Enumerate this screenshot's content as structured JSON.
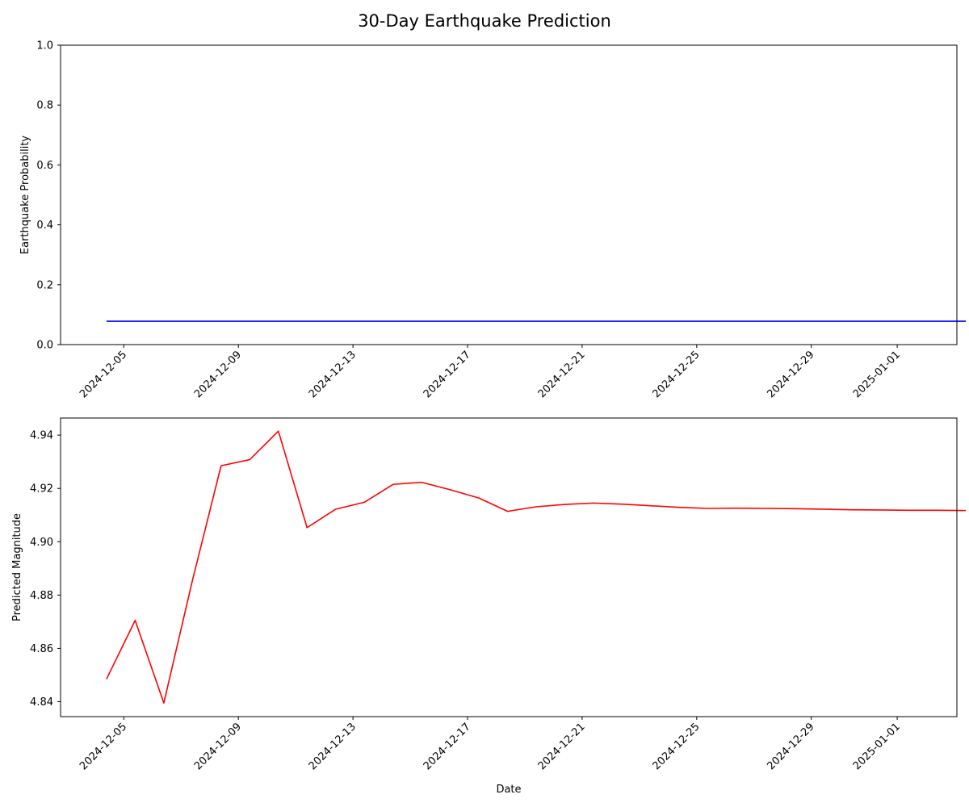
{
  "figure": {
    "title": "30-Day Earthquake Prediction"
  },
  "chart_data": [
    {
      "type": "line",
      "ylabel": "Earthquake Probability",
      "xlabel": "",
      "xlim": [
        "2024-12-02T19:00",
        "2025-01-03T02:00"
      ],
      "ylim": [
        0,
        1
      ],
      "y_ticks": [
        0.0,
        0.2,
        0.4,
        0.6,
        0.8,
        1.0
      ],
      "y_tick_labels": [
        "0.0",
        "0.2",
        "0.4",
        "0.6",
        "0.8",
        "1.0"
      ],
      "x_ticks": [
        "2024-12-05",
        "2024-12-09",
        "2024-12-13",
        "2024-12-17",
        "2024-12-21",
        "2024-12-25",
        "2024-12-29",
        "2025-01-01"
      ],
      "grid": false,
      "series": [
        {
          "color": "#0000ff",
          "x": [
            "2024-12-04",
            "2024-12-05",
            "2024-12-06",
            "2024-12-07",
            "2024-12-08",
            "2024-12-09",
            "2024-12-10",
            "2024-12-11",
            "2024-12-12",
            "2024-12-13",
            "2024-12-14",
            "2024-12-15",
            "2024-12-16",
            "2024-12-17",
            "2024-12-18",
            "2024-12-19",
            "2024-12-20",
            "2024-12-21",
            "2024-12-22",
            "2024-12-23",
            "2024-12-24",
            "2024-12-25",
            "2024-12-26",
            "2024-12-27",
            "2024-12-28",
            "2024-12-29",
            "2024-12-30",
            "2024-12-31",
            "2025-01-01",
            "2025-01-02",
            "2025-01-03"
          ],
          "x_time": "09:30",
          "y": [
            0.078,
            0.078,
            0.078,
            0.078,
            0.078,
            0.078,
            0.078,
            0.078,
            0.078,
            0.078,
            0.078,
            0.078,
            0.078,
            0.078,
            0.078,
            0.078,
            0.078,
            0.078,
            0.078,
            0.078,
            0.078,
            0.078,
            0.078,
            0.078,
            0.078,
            0.078,
            0.078,
            0.078,
            0.078,
            0.078,
            0.078
          ]
        }
      ]
    },
    {
      "type": "line",
      "ylabel": "Predicted Magnitude",
      "xlabel": "Date",
      "xlim": [
        "2024-12-02T19:00",
        "2025-01-03T02:00"
      ],
      "ylim": [
        4.8344,
        4.9464
      ],
      "y_ticks": [
        4.84,
        4.86,
        4.88,
        4.9,
        4.92,
        4.94
      ],
      "y_tick_labels": [
        "4.84",
        "4.86",
        "4.88",
        "4.90",
        "4.92",
        "4.94"
      ],
      "x_ticks": [
        "2024-12-05",
        "2024-12-09",
        "2024-12-13",
        "2024-12-17",
        "2024-12-21",
        "2024-12-25",
        "2024-12-29",
        "2025-01-01"
      ],
      "grid": false,
      "series": [
        {
          "color": "#ff0000",
          "x": [
            "2024-12-04",
            "2024-12-05",
            "2024-12-06",
            "2024-12-07",
            "2024-12-08",
            "2024-12-09",
            "2024-12-10",
            "2024-12-11",
            "2024-12-12",
            "2024-12-13",
            "2024-12-14",
            "2024-12-15",
            "2024-12-16",
            "2024-12-17",
            "2024-12-18",
            "2024-12-19",
            "2024-12-20",
            "2024-12-21",
            "2024-12-22",
            "2024-12-23",
            "2024-12-24",
            "2024-12-25",
            "2024-12-26",
            "2024-12-27",
            "2024-12-28",
            "2024-12-29",
            "2024-12-30",
            "2024-12-31",
            "2025-01-01",
            "2025-01-02",
            "2025-01-03"
          ],
          "x_time": "09:30",
          "y": [
            4.8485,
            4.8705,
            4.8395,
            4.8855,
            4.9285,
            4.9308,
            4.9415,
            4.9053,
            4.9122,
            4.9148,
            4.9215,
            4.9223,
            4.9195,
            4.9164,
            4.9114,
            4.9131,
            4.914,
            4.9145,
            4.9141,
            4.9135,
            4.9129,
            4.9125,
            4.9126,
            4.9125,
            4.9124,
            4.9122,
            4.912,
            4.9119,
            4.9118,
            4.9118,
            4.9117
          ]
        }
      ]
    }
  ]
}
